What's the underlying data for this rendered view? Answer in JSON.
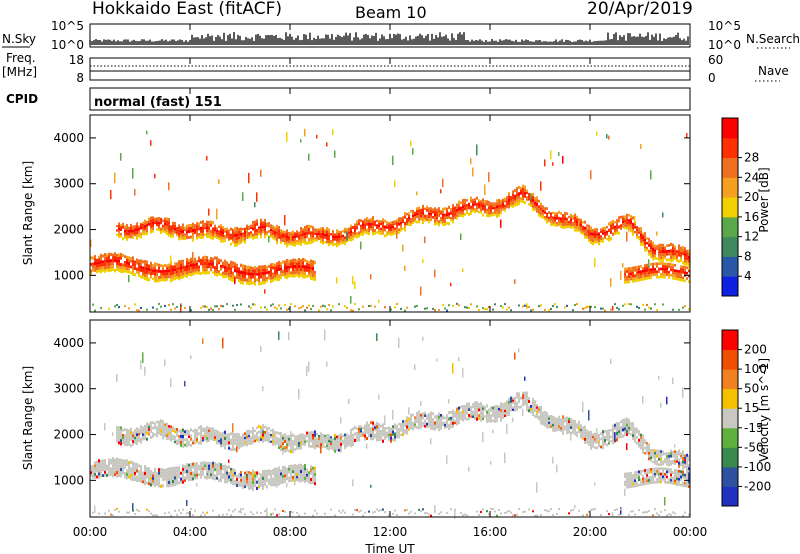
{
  "header": {
    "station": "Hokkaido East (fitACF)",
    "beam": "Beam 10",
    "date": "20/Apr/2019"
  },
  "left_labels": {
    "nsky": "N.Sky",
    "freq_line1": "Freq.",
    "freq_line2": "[MHz]",
    "cpid": "CPID"
  },
  "right_labels": {
    "nsearch": "N.Search",
    "nave": "Nave"
  },
  "noise_panel": {
    "left_ticks": [
      "10^5",
      "10^0"
    ],
    "right_ticks": [
      "10^5",
      "10^0"
    ]
  },
  "freq_panel": {
    "left_ticks": [
      "18",
      "8"
    ],
    "right_ticks": [
      "60",
      "0"
    ]
  },
  "cpid_text": "normal (fast) 151",
  "colors": {
    "data_grey": "#c8c8c0",
    "panel_border": "#000000"
  },
  "chart_data": [
    {
      "type": "heatmap",
      "name": "power",
      "ylabel": "Slant Range [km]",
      "ylim": [
        200,
        4500
      ],
      "y_ticks": [
        "1000",
        "2000",
        "3000",
        "4000"
      ],
      "x_ticks": [
        "00:00",
        "04:00",
        "08:00",
        "12:00",
        "16:00",
        "20:00",
        "00:00"
      ],
      "xlim_hours": [
        0,
        24
      ],
      "colorbar": {
        "label": "Power [dB]",
        "ticks": [
          "4",
          "8",
          "12",
          "16",
          "20",
          "24",
          "28"
        ],
        "colors": [
          "#1020e0",
          "#2a58a8",
          "#3e8a5e",
          "#5aa84a",
          "#f0d000",
          "#f5a020",
          "#f07020",
          "#ff3000",
          "#ff0000"
        ]
      },
      "echo_bands_km": [
        {
          "from_h": 0.0,
          "to_h": 9.0,
          "center_start": 1200,
          "center_end": 1050,
          "width": 350
        },
        {
          "from_h": 1.0,
          "to_h": 24.0,
          "path_center": [
            [
              1.0,
              2000
            ],
            [
              3.0,
              2050
            ],
            [
              5.0,
              1900
            ],
            [
              7.0,
              1950
            ],
            [
              9.0,
              1800
            ],
            [
              10.5,
              1950
            ],
            [
              12.0,
              2100
            ],
            [
              14.0,
              2350
            ],
            [
              16.0,
              2500
            ],
            [
              17.3,
              2700
            ],
            [
              18.5,
              2300
            ],
            [
              20.0,
              1900
            ],
            [
              21.5,
              2100
            ],
            [
              22.5,
              1600
            ],
            [
              24.0,
              1300
            ]
          ],
          "width": 300
        }
      ]
    },
    {
      "type": "heatmap",
      "name": "velocity",
      "ylabel": "Slant Range [km]",
      "ylim": [
        200,
        4500
      ],
      "y_ticks": [
        "1000",
        "2000",
        "3000",
        "4000"
      ],
      "x_ticks": [
        "00:00",
        "04:00",
        "08:00",
        "12:00",
        "16:00",
        "20:00",
        "00:00"
      ],
      "xlabel": "Time UT",
      "colorbar": {
        "label": "Velocity [m s^-1]",
        "ticks": [
          "200",
          "100",
          "50",
          "15",
          "-15",
          "-50",
          "-100",
          "-200"
        ],
        "colors": [
          "#2030c0",
          "#3050a0",
          "#3a8a50",
          "#60b040",
          "#c8c8c0",
          "#f5c000",
          "#f08020",
          "#f05000",
          "#ff0000"
        ]
      }
    }
  ]
}
